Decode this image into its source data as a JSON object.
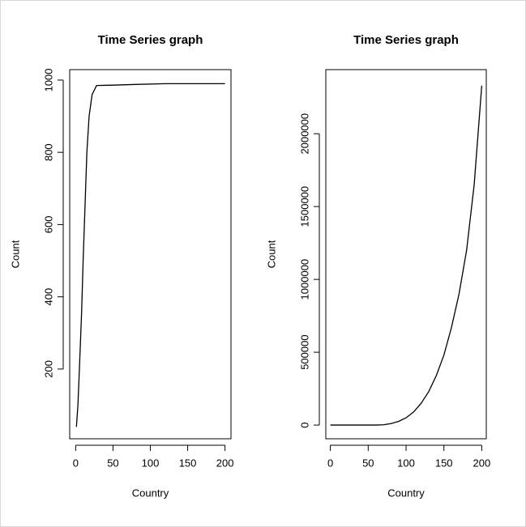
{
  "chart_data": [
    {
      "type": "line",
      "title": "Time Series graph",
      "x_label": "Country",
      "y_label": "Count",
      "color": "#000000",
      "x": [
        1,
        3,
        5,
        8,
        10,
        13,
        15,
        18,
        22,
        28,
        50,
        80,
        120,
        160,
        200
      ],
      "values": [
        40,
        100,
        200,
        360,
        500,
        680,
        800,
        900,
        960,
        985,
        986,
        988,
        990,
        990,
        990
      ],
      "xlim": [
        -8,
        208
      ],
      "xticks": [
        0,
        50,
        100,
        150,
        200
      ],
      "ylim": [
        7,
        1029
      ],
      "yticks": [
        200,
        400,
        600,
        800,
        1000
      ]
    },
    {
      "type": "line",
      "title": "Time Series graph",
      "x_label": "Country",
      "y_label": "Count",
      "color": "#000000",
      "x": [
        0,
        10,
        20,
        30,
        40,
        50,
        60,
        70,
        80,
        90,
        100,
        110,
        120,
        130,
        140,
        150,
        160,
        170,
        180,
        190,
        200
      ],
      "values": [
        0,
        0,
        0,
        0,
        0,
        0,
        0,
        2000,
        10000,
        25000,
        50000,
        90000,
        150000,
        230000,
        340000,
        480000,
        670000,
        900000,
        1200000,
        1650000,
        2330000
      ],
      "xlim": [
        -6,
        206
      ],
      "xticks": [
        0,
        50,
        100,
        150,
        200
      ],
      "ylim": [
        -94000,
        2440000
      ],
      "yticks": [
        0,
        500000,
        1000000,
        1500000,
        2000000
      ]
    }
  ]
}
